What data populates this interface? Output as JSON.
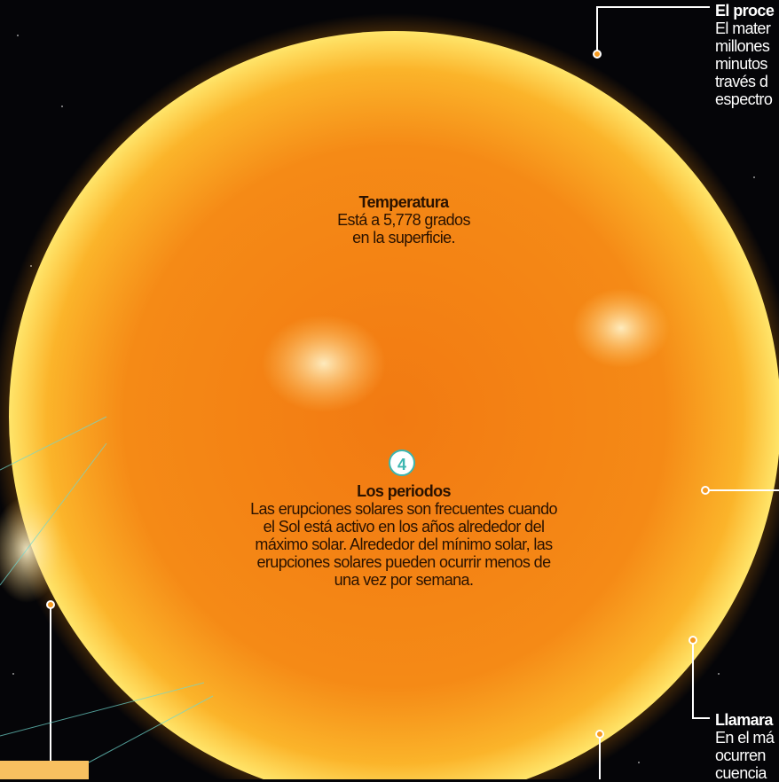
{
  "callout_top_right": {
    "title": "El proce",
    "lines": [
      "El mater",
      "millones",
      "minutos",
      "través d",
      "espectro"
    ]
  },
  "temperature": {
    "title": "Temperatura",
    "lines": [
      "Está a 5,778 grados",
      "en la superficie."
    ]
  },
  "periods": {
    "number": "4",
    "title": "Los periodos",
    "lines": [
      "Las erupciones solares son frecuentes cuando",
      "el Sol está activo en los años alrededor del",
      "máximo solar. Alrededor del mínimo solar, las",
      "erupciones solares pueden ocurrir menos de",
      "una vez por semana."
    ]
  },
  "callout_bottom_right": {
    "title": "Llamara",
    "lines": [
      "En el má",
      "ocurren",
      "cuencia"
    ]
  }
}
